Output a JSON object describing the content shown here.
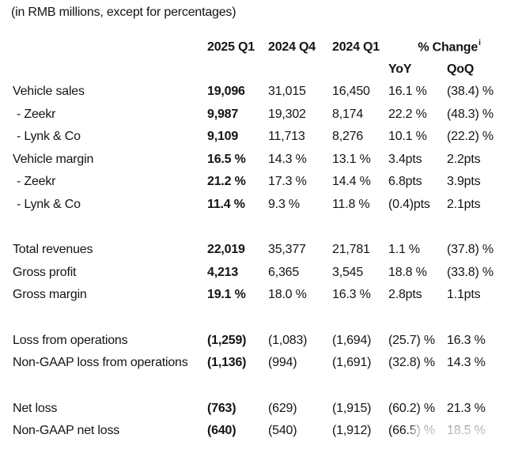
{
  "title": "(in RMB millions, except for percentages)",
  "table": {
    "columns": [
      "2025 Q1",
      "2024 Q4",
      "2024 Q1"
    ],
    "change_header": "% Change",
    "change_note_sup": "i",
    "change_subcolumns": [
      "YoY",
      "QoQ"
    ],
    "rows": [
      {
        "label": "Vehicle sales",
        "values": {
          "q1_2025": "19,096",
          "q4_2024": "31,015",
          "q1_2024": "16,450",
          "yoy": "16.1 %",
          "qoq": "(38.4) %"
        }
      },
      {
        "label": "- Zeekr",
        "values": {
          "q1_2025": "9,987",
          "q4_2024": "19,302",
          "q1_2024": "8,174",
          "yoy": "22.2 %",
          "qoq": "(48.3) %"
        }
      },
      {
        "label": "- Lynk & Co",
        "values": {
          "q1_2025": "9,109",
          "q4_2024": "11,713",
          "q1_2024": "8,276",
          "yoy": "10.1 %",
          "qoq": "(22.2) %"
        }
      },
      {
        "label": "Vehicle margin",
        "values": {
          "q1_2025": "16.5 %",
          "q4_2024": "14.3 %",
          "q1_2024": "13.1 %",
          "yoy": "3.4pts",
          "qoq": "2.2pts"
        }
      },
      {
        "label": "- Zeekr",
        "values": {
          "q1_2025": "21.2 %",
          "q4_2024": "17.3 %",
          "q1_2024": "14.4 %",
          "yoy": "6.8pts",
          "qoq": "3.9pts"
        }
      },
      {
        "label": "- Lynk & Co",
        "values": {
          "q1_2025": "11.4 %",
          "q4_2024": "9.3 %",
          "q1_2024": "11.8 %",
          "yoy": "(0.4)pts",
          "qoq": "2.1pts"
        }
      },
      {
        "label": "Total revenues",
        "values": {
          "q1_2025": "22,019",
          "q4_2024": "35,377",
          "q1_2024": "21,781",
          "yoy": "1.1 %",
          "qoq": "(37.8) %"
        }
      },
      {
        "label": "Gross profit",
        "values": {
          "q1_2025": "4,213",
          "q4_2024": "6,365",
          "q1_2024": "3,545",
          "yoy": "18.8 %",
          "qoq": "(33.8) %"
        }
      },
      {
        "label": "Gross margin",
        "values": {
          "q1_2025": "19.1 %",
          "q4_2024": "18.0 %",
          "q1_2024": "16.3 %",
          "yoy": "2.8pts",
          "qoq": "1.1pts"
        }
      },
      {
        "label": "Loss from operations",
        "values": {
          "q1_2025": "(1,259)",
          "q4_2024": "(1,083)",
          "q1_2024": "(1,694)",
          "yoy": "(25.7) %",
          "qoq": "16.3 %"
        }
      },
      {
        "label": "Non-GAAP loss from operations",
        "values": {
          "q1_2025": "(1,136)",
          "q4_2024": "(994)",
          "q1_2024": "(1,691)",
          "yoy": "(32.8) %",
          "qoq": "14.3 %"
        }
      },
      {
        "label": "Net loss",
        "values": {
          "q1_2025": "(763)",
          "q4_2024": "(629)",
          "q1_2024": "(1,915)",
          "yoy": "(60.2) %",
          "qoq": "21.3 %"
        }
      },
      {
        "label": "Non-GAAP net loss",
        "values": {
          "q1_2025": "(640)",
          "q4_2024": "(540)",
          "q1_2024": "(1,912)",
          "yoy": "(66.5) %",
          "qoq": "18.5 %"
        }
      }
    ]
  }
}
